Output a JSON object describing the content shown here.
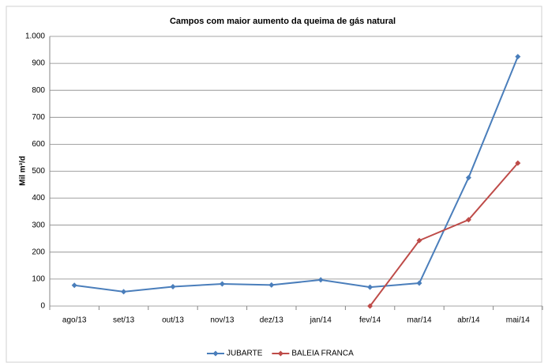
{
  "chart_data": {
    "type": "line",
    "title": "Campos com maior aumento da queima de gás natural",
    "y_label": "Mil m³/d",
    "categories": [
      "ago/13",
      "set/13",
      "out/13",
      "nov/13",
      "dez/13",
      "jan/14",
      "fev/14",
      "mar/14",
      "abr/14",
      "mai/14"
    ],
    "series": [
      {
        "name": "JUBARTE",
        "color": "#4a7ebb",
        "values": [
          77,
          53,
          72,
          82,
          78,
          97,
          70,
          85,
          476,
          925
        ]
      },
      {
        "name": "BALEIA FRANCA",
        "color": "#be4b48",
        "values": [
          null,
          null,
          null,
          null,
          null,
          null,
          0,
          243,
          320,
          530
        ]
      }
    ],
    "ylim": [
      0,
      1000
    ],
    "yticks": [
      0,
      100,
      200,
      300,
      400,
      500,
      600,
      700,
      800,
      900,
      {
        "value": 1000,
        "label": "1.000"
      }
    ],
    "grid": true,
    "legend": "bottom"
  }
}
